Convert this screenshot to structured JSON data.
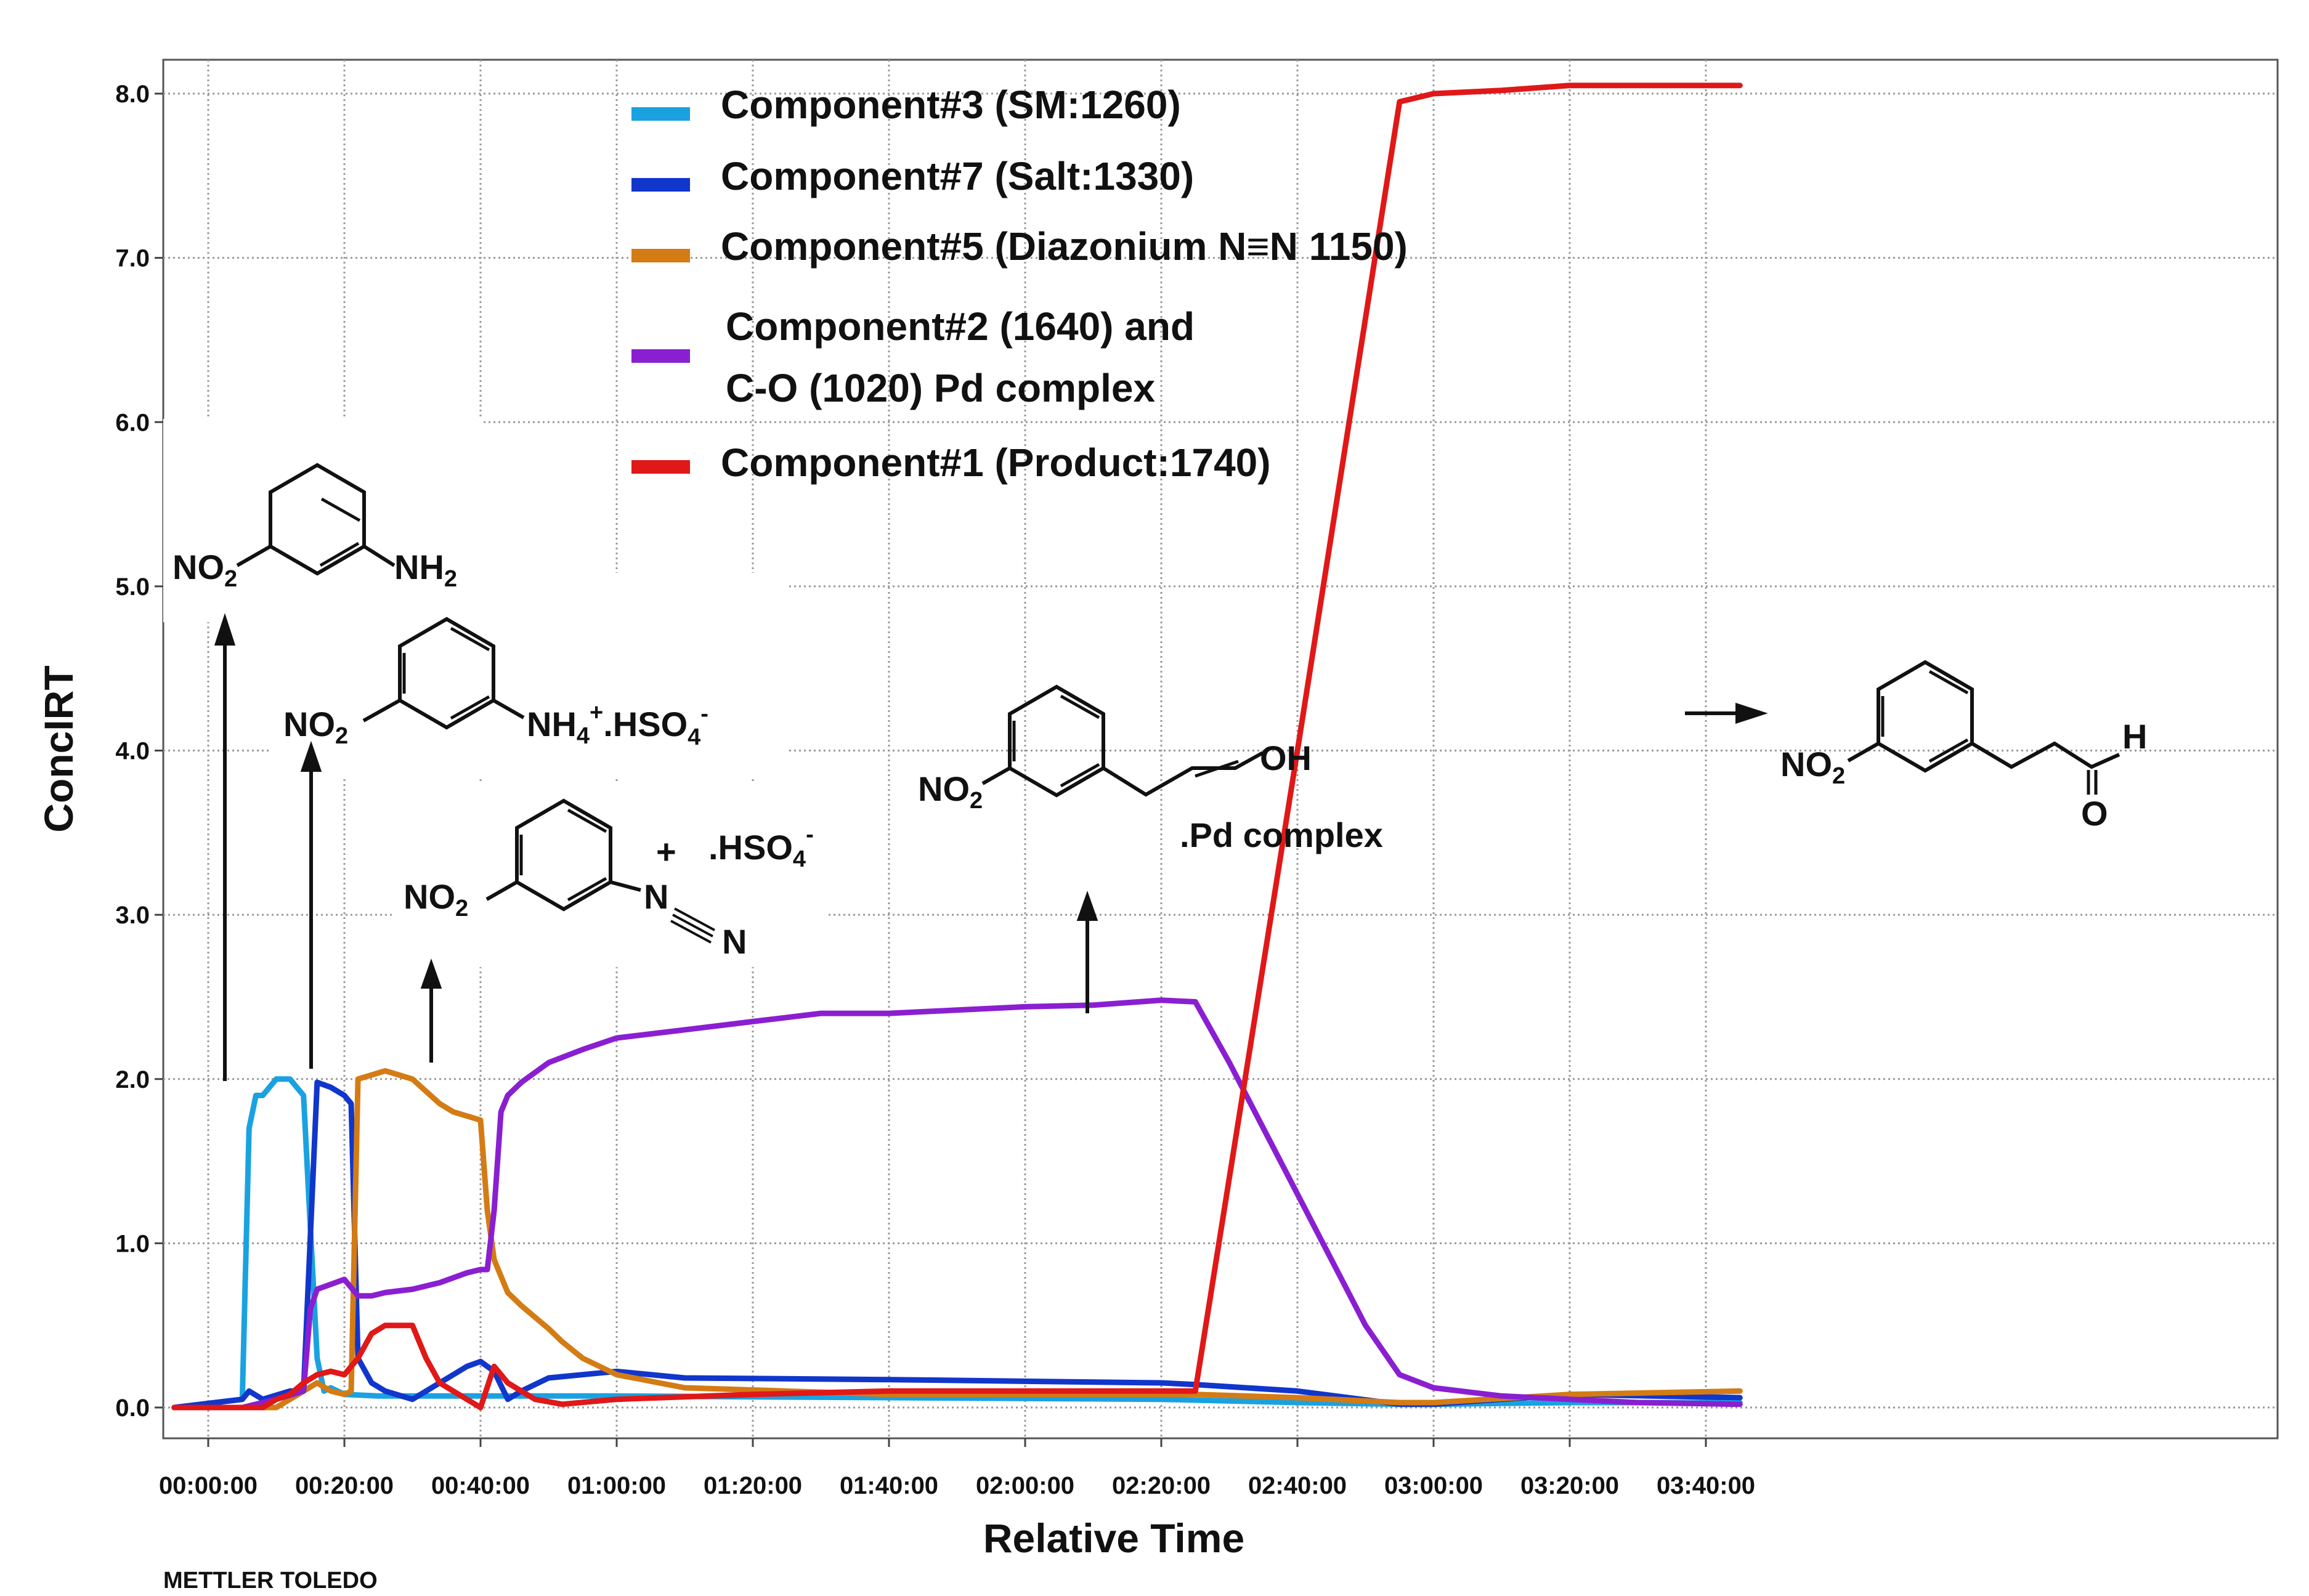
{
  "chart_data": {
    "type": "line",
    "xlabel": "Relative Time",
    "ylabel": "ConcIRT",
    "xticks": [
      "00:00:00",
      "00:20:00",
      "00:40:00",
      "01:00:00",
      "01:20:00",
      "01:40:00",
      "02:00:00",
      "02:20:00",
      "02:40:00",
      "03:00:00",
      "03:20:00",
      "03:40:00"
    ],
    "yticks": [
      "0.0",
      "1.0",
      "2.0",
      "3.0",
      "4.0",
      "5.0",
      "6.0",
      "7.0",
      "8.0"
    ],
    "xlim_min": [
      -5,
      225
    ],
    "ylim": [
      -0.15,
      8.25
    ],
    "grid": true,
    "legend_position": "top-center",
    "series": [
      {
        "name": "Component#3 (SM:1260)",
        "color": "#1aa2e0",
        "x": [
          -5,
          5,
          6,
          7,
          8,
          10,
          12,
          14,
          16,
          17,
          18,
          19,
          20,
          25,
          30,
          40,
          60,
          100,
          140,
          160,
          175,
          180,
          200,
          225
        ],
        "y": [
          0.0,
          0.05,
          1.7,
          1.9,
          1.9,
          2.0,
          2.0,
          1.9,
          0.3,
          0.1,
          0.12,
          0.1,
          0.08,
          0.07,
          0.07,
          0.07,
          0.07,
          0.06,
          0.05,
          0.03,
          0.02,
          0.02,
          0.03,
          0.03
        ]
      },
      {
        "name": "Component#7 (Salt:1330)",
        "color": "#1136cc",
        "x": [
          -5,
          5,
          6,
          8,
          12,
          14,
          16,
          18,
          20,
          21,
          22,
          24,
          26,
          30,
          34,
          36,
          38,
          40,
          42,
          44,
          46,
          50,
          60,
          70,
          100,
          140,
          145,
          160,
          175,
          180,
          190,
          200,
          225
        ],
        "y": [
          0.0,
          0.05,
          0.1,
          0.05,
          0.1,
          0.1,
          1.98,
          1.95,
          1.9,
          1.85,
          0.3,
          0.15,
          0.1,
          0.05,
          0.15,
          0.2,
          0.25,
          0.28,
          0.22,
          0.05,
          0.1,
          0.18,
          0.22,
          0.18,
          0.17,
          0.15,
          0.14,
          0.1,
          0.02,
          0.02,
          0.05,
          0.08,
          0.06
        ]
      },
      {
        "name": "Component#5 (Diazonium N≡N 1150)",
        "color": "#d47b14",
        "x": [
          -5,
          10,
          16,
          18,
          20,
          21,
          22,
          26,
          30,
          34,
          36,
          40,
          41,
          42,
          44,
          46,
          48,
          50,
          52,
          55,
          60,
          70,
          100,
          140,
          145,
          160,
          175,
          180,
          200,
          225
        ],
        "y": [
          0.0,
          0.0,
          0.15,
          0.1,
          0.08,
          0.1,
          2.0,
          2.05,
          2.0,
          1.85,
          1.8,
          1.75,
          1.2,
          0.9,
          0.7,
          0.62,
          0.55,
          0.48,
          0.4,
          0.3,
          0.2,
          0.12,
          0.08,
          0.08,
          0.08,
          0.06,
          0.03,
          0.03,
          0.08,
          0.1
        ]
      },
      {
        "name": "Component#2 (1640) and C-O (1020) Pd complex",
        "color": "#8a1fd1",
        "x": [
          -5,
          5,
          10,
          14,
          15,
          16,
          18,
          20,
          22,
          24,
          26,
          30,
          34,
          38,
          40,
          41,
          42,
          43,
          44,
          46,
          50,
          55,
          60,
          70,
          80,
          90,
          100,
          110,
          120,
          130,
          140,
          145,
          150,
          160,
          170,
          175,
          180,
          190,
          200,
          210,
          225
        ],
        "y": [
          0.0,
          0.0,
          0.05,
          0.1,
          0.6,
          0.72,
          0.75,
          0.78,
          0.68,
          0.68,
          0.7,
          0.72,
          0.76,
          0.82,
          0.84,
          0.84,
          1.2,
          1.8,
          1.9,
          1.98,
          2.1,
          2.18,
          2.25,
          2.3,
          2.35,
          2.4,
          2.4,
          2.42,
          2.44,
          2.45,
          2.48,
          2.47,
          2.1,
          1.3,
          0.5,
          0.2,
          0.12,
          0.07,
          0.05,
          0.03,
          0.02
        ]
      },
      {
        "name": "Component#1 (Product:1740)",
        "color": "#e01818",
        "x": [
          -5,
          8,
          10,
          12,
          14,
          16,
          18,
          20,
          22,
          24,
          26,
          28,
          30,
          32,
          34,
          38,
          40,
          42,
          44,
          48,
          52,
          60,
          80,
          100,
          120,
          130,
          140,
          145,
          160,
          175,
          180,
          190,
          200,
          225
        ],
        "y": [
          0.0,
          0.0,
          0.05,
          0.08,
          0.15,
          0.2,
          0.22,
          0.2,
          0.3,
          0.45,
          0.5,
          0.5,
          0.5,
          0.3,
          0.15,
          0.05,
          0.0,
          0.25,
          0.15,
          0.05,
          0.02,
          0.05,
          0.08,
          0.1,
          0.1,
          0.1,
          0.1,
          0.1,
          4.0,
          7.95,
          8.0,
          8.02,
          8.05,
          8.05
        ]
      }
    ],
    "annotations": [
      {
        "text": "NO2 / NH2 (3-nitroaniline)",
        "arrow_x": 1.0
      },
      {
        "text": "NH4+.HSO4-",
        "arrow_x": 11.0
      },
      {
        "text": ".HSO4-",
        "arrow_x": 24.0
      },
      {
        "text": ".Pd complex",
        "arrow_x": 95.0
      },
      {
        "text": "aldehyde product",
        "arrow_x": 175.0
      }
    ]
  },
  "molecules": {
    "m1": {
      "left": "NO",
      "left_sub": "2",
      "right": "NH",
      "right_sub": "2"
    },
    "m2": {
      "left": "NO",
      "left_sub": "2",
      "right": "NH",
      "right_sup1": "+",
      "right_mid": ".HSO",
      "right_sub": "4",
      "right_sup2": "-",
      "right_base": "4"
    },
    "m3": {
      "left": "NO",
      "left_sub": "2",
      "plus": "+",
      "n1": "N",
      "n2": "N",
      "salt": ".HSO",
      "salt_sub": "4",
      "salt_sup": "-"
    },
    "m4": {
      "left": "NO",
      "left_sub": "2",
      "oh": "OH",
      "complex": ".Pd complex"
    },
    "m5": {
      "left": "NO",
      "left_sub": "2",
      "h": "H",
      "o": "O"
    }
  },
  "brand": "METTLER TOLEDO"
}
